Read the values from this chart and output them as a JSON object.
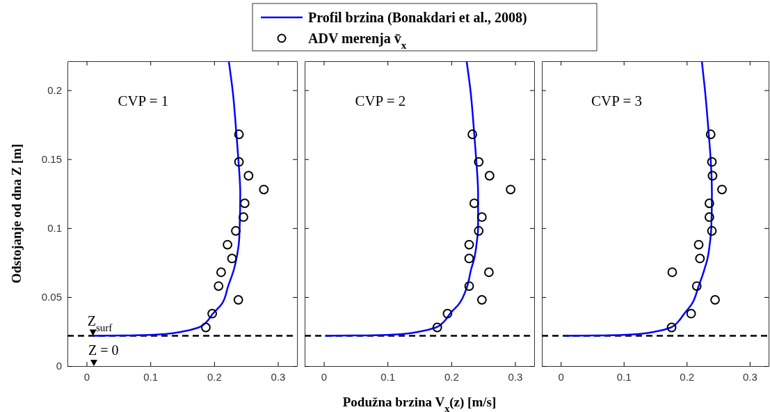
{
  "chart_data": [
    {
      "type": "scatter",
      "title": "CVP = 1",
      "ylabel": "Odstojanje od dna Z [m]",
      "xlim": [
        -0.03,
        0.33
      ],
      "ylim": [
        0,
        0.221
      ],
      "xticks": [
        0,
        0.1,
        0.2,
        0.3
      ],
      "yticks": [
        0,
        0.05,
        0.1,
        0.15,
        0.2
      ],
      "grid": false,
      "legend": "top",
      "series": [
        {
          "name": "Profil brzina (Bonakdari et al., 2008)",
          "type": "line",
          "color": "#0000ff",
          "line_style": "solid",
          "marker": "none",
          "x": [
            0.01,
            0.06,
            0.115,
            0.15,
            0.176,
            0.188,
            0.198,
            0.212,
            0.222,
            0.231,
            0.235,
            0.239,
            0.24,
            0.241,
            0.238,
            0.235,
            0.229,
            0.223
          ],
          "values": [
            0.022,
            0.0222,
            0.023,
            0.025,
            0.028,
            0.032,
            0.038,
            0.045,
            0.058,
            0.07,
            0.078,
            0.09,
            0.1,
            0.125,
            0.15,
            0.168,
            0.2,
            0.221
          ]
        },
        {
          "name": "ADV merenja v̄$_{x}$",
          "color": "#000000",
          "marker": "circle",
          "x": [
            0.239,
            0.239,
            0.254,
            0.278,
            0.248,
            0.246,
            0.234,
            0.221,
            0.228,
            0.211,
            0.207,
            0.238,
            0.197,
            0.187
          ],
          "values": [
            0.168,
            0.148,
            0.138,
            0.128,
            0.118,
            0.108,
            0.098,
            0.088,
            0.078,
            0.068,
            0.058,
            0.048,
            0.038,
            0.028
          ]
        }
      ],
      "ref_lines": [
        {
          "axis": "y",
          "value": 0.022,
          "line_style": "dashed",
          "color": "#000000"
        }
      ],
      "annotations": [
        {
          "text": "Z$_{surf}$",
          "x": 0.01,
          "y": 0.022
        },
        "Z = 0"
      ]
    },
    {
      "type": "scatter",
      "title": "CVP = 2",
      "xlabel": "Podužna brzina V$_{x}$(z) [m/s]",
      "xlim": [
        -0.03,
        0.33
      ],
      "ylim": [
        0,
        0.221
      ],
      "xticks": [
        0,
        0.1,
        0.2,
        0.3
      ],
      "yticks": [
        0,
        0.05,
        0.1,
        0.15,
        0.2
      ],
      "grid": false,
      "tick_labels": "x",
      "series": [
        {
          "type": "line",
          "color": "#0000ff",
          "line_style": "solid",
          "marker": "none",
          "x": [
            0.002,
            0.06,
            0.115,
            0.15,
            0.176,
            0.188,
            0.198,
            0.212,
            0.225,
            0.231,
            0.236,
            0.24,
            0.242,
            0.242,
            0.239,
            0.236,
            0.23,
            0.224
          ],
          "values": [
            0.022,
            0.0222,
            0.023,
            0.025,
            0.028,
            0.032,
            0.038,
            0.045,
            0.058,
            0.07,
            0.078,
            0.09,
            0.1,
            0.125,
            0.15,
            0.168,
            0.2,
            0.221
          ]
        },
        {
          "color": "#000000",
          "marker": "circle",
          "x": [
            0.233,
            0.243,
            0.26,
            0.293,
            0.236,
            0.248,
            0.243,
            0.228,
            0.228,
            0.259,
            0.228,
            0.248,
            0.194,
            0.178
          ],
          "values": [
            0.168,
            0.148,
            0.138,
            0.128,
            0.118,
            0.108,
            0.098,
            0.088,
            0.078,
            0.068,
            0.058,
            0.048,
            0.038,
            0.028
          ]
        }
      ],
      "ref_lines": [
        {
          "axis": "y",
          "value": 0.022,
          "line_style": "dashed",
          "color": "#000000"
        }
      ]
    },
    {
      "type": "scatter",
      "title": "CVP = 3",
      "xlim": [
        -0.03,
        0.33
      ],
      "ylim": [
        0,
        0.221
      ],
      "xticks": [
        0,
        0.1,
        0.2,
        0.3
      ],
      "yticks": [
        0,
        0.05,
        0.1,
        0.15,
        0.2
      ],
      "grid": false,
      "tick_labels": "x",
      "series": [
        {
          "type": "line",
          "color": "#0000ff",
          "line_style": "solid",
          "marker": "none",
          "x": [
            0.007,
            0.06,
            0.115,
            0.15,
            0.175,
            0.186,
            0.196,
            0.208,
            0.219,
            0.228,
            0.233,
            0.237,
            0.239,
            0.24,
            0.238,
            0.235,
            0.229,
            0.224
          ],
          "values": [
            0.022,
            0.0222,
            0.023,
            0.025,
            0.028,
            0.032,
            0.038,
            0.045,
            0.058,
            0.07,
            0.078,
            0.09,
            0.1,
            0.125,
            0.15,
            0.168,
            0.2,
            0.221
          ]
        },
        {
          "color": "#000000",
          "marker": "circle",
          "x": [
            0.238,
            0.24,
            0.241,
            0.256,
            0.236,
            0.236,
            0.24,
            0.219,
            0.221,
            0.177,
            0.216,
            0.245,
            0.207,
            0.176
          ],
          "values": [
            0.168,
            0.148,
            0.138,
            0.128,
            0.118,
            0.108,
            0.098,
            0.088,
            0.078,
            0.068,
            0.058,
            0.048,
            0.038,
            0.028
          ]
        }
      ],
      "ref_lines": [
        {
          "axis": "y",
          "value": 0.022,
          "line_style": "dashed",
          "color": "#000000"
        }
      ]
    }
  ]
}
